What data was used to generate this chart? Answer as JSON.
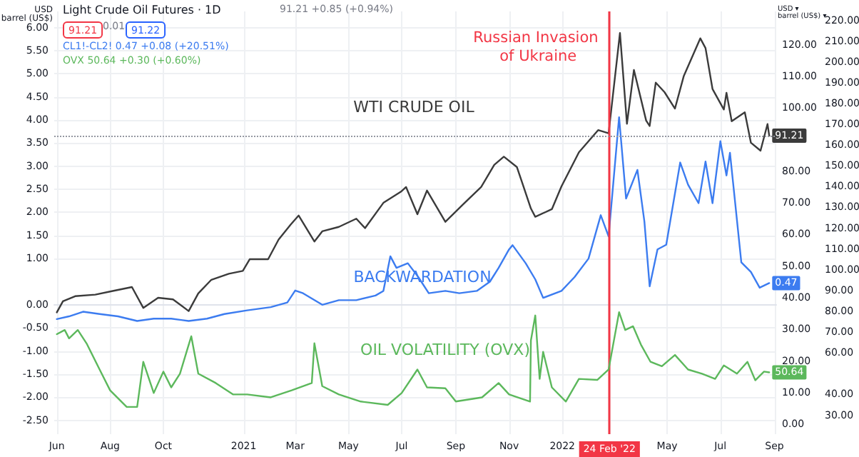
{
  "chart_data": {
    "type": "line",
    "title": "Light Crude Oil Futures · 1D",
    "ylabel": "USD\nbarrel (US$)",
    "y2label": "USD ▾\nbarrel (US$) ▾",
    "annotations": [
      "91.21 +0.85 (+0.94%)",
      "91.21",
      "0.01",
      "91.22",
      "CL1!-CL2! 0.47 +0.08 (+20.51%)",
      "OVX 50.64 +0.30 (+0.60%)"
    ],
    "marker": "none",
    "grid": true,
    "xlim": [
      "2020-05-29",
      "2022-09-03"
    ],
    "xticks": [
      {
        "value": "2020-06-01",
        "label": "Jun"
      },
      {
        "value": "2020-08-01",
        "label": "Aug"
      },
      {
        "value": "2020-10-01",
        "label": "Oct"
      },
      {
        "value": "2021-01-01",
        "label": "2021"
      },
      {
        "value": "2021-03-01",
        "label": "Mar"
      },
      {
        "value": "2021-05-01",
        "label": "May"
      },
      {
        "value": "2021-07-01",
        "label": "Jul"
      },
      {
        "value": "2021-09-01",
        "label": "Sep"
      },
      {
        "value": "2021-11-01",
        "label": "Nov"
      },
      {
        "value": "2022-01-01",
        "label": "2022"
      },
      {
        "value": "2022-02-24",
        "label": "24 Feb '22"
      },
      {
        "value": "2022-05-01",
        "label": "May"
      },
      {
        "value": "2022-07-01",
        "label": "Jul"
      },
      {
        "value": "2022-09-01",
        "label": "Sep"
      }
    ],
    "ylim": [
      -2.8,
      6.35
    ],
    "yticks": [
      {
        "value": -2.5,
        "label": "-2.50"
      },
      {
        "value": -2,
        "label": "-2.00"
      },
      {
        "value": -1.5,
        "label": "-1.50"
      },
      {
        "value": -1,
        "label": "-1.00"
      },
      {
        "value": -0.5,
        "label": "-0.50"
      },
      {
        "value": 0,
        "label": "0.00"
      },
      {
        "value": 1,
        "label": "1.00"
      },
      {
        "value": 1.5,
        "label": "1.50"
      },
      {
        "value": 2,
        "label": "2.00"
      },
      {
        "value": 2.5,
        "label": "2.50"
      },
      {
        "value": 3,
        "label": "3.00"
      },
      {
        "value": 3.5,
        "label": "3.50"
      },
      {
        "value": 4,
        "label": "4.00"
      },
      {
        "value": 4.5,
        "label": "4.50"
      },
      {
        "value": 5,
        "label": "5.00"
      },
      {
        "value": 5.5,
        "label": "5.50"
      },
      {
        "value": 6,
        "label": "6.00"
      }
    ],
    "y2lim": [
      -3.1,
      130.5
    ],
    "y2ticks": [
      {
        "value": 0,
        "label": "0.00"
      },
      {
        "value": 10,
        "label": "10.00"
      },
      {
        "value": 20,
        "label": "20.00"
      },
      {
        "value": 30,
        "label": "30.00"
      },
      {
        "value": 40,
        "label": "40.00"
      },
      {
        "value": 50,
        "label": "50.00"
      },
      {
        "value": 60,
        "label": "60.00"
      },
      {
        "value": 70,
        "label": "70.00"
      },
      {
        "value": 80,
        "label": "80.00"
      },
      {
        "value": 100,
        "label": "100.00"
      },
      {
        "value": 110,
        "label": "110.00"
      },
      {
        "value": 120,
        "label": "120.00"
      }
    ],
    "y3lim": [
      20.9,
      224.3
    ],
    "y3ticks": [
      {
        "value": 30,
        "label": "30.00"
      },
      {
        "value": 40,
        "label": "40.00"
      },
      {
        "value": 60,
        "label": "60.00"
      },
      {
        "value": 70,
        "label": "70.00"
      },
      {
        "value": 80,
        "label": "80.00"
      },
      {
        "value": 90,
        "label": "90.00"
      },
      {
        "value": 100,
        "label": "100.00"
      },
      {
        "value": 110,
        "label": "110.00"
      },
      {
        "value": 120,
        "label": "120.00"
      },
      {
        "value": 130,
        "label": "130.00"
      },
      {
        "value": 140,
        "label": "140.00"
      },
      {
        "value": 150,
        "label": "150.00"
      },
      {
        "value": 160,
        "label": "160.00"
      },
      {
        "value": 170,
        "label": "170.00"
      },
      {
        "value": 180,
        "label": "180.00"
      },
      {
        "value": 190,
        "label": "190.00"
      },
      {
        "value": 200,
        "label": "200.00"
      },
      {
        "value": 210,
        "label": "210.00"
      },
      {
        "value": 220,
        "label": "220.00"
      }
    ],
    "ref_lines": [
      {
        "axis": "x",
        "value": "2022-02-24",
        "label": "Russian Invasion of Ukraine",
        "color": "#f23645"
      },
      {
        "axis": "y2",
        "value": 91.21,
        "color": "#9598a1",
        "line_style": "dotted"
      }
    ],
    "series": [
      {
        "name": "WTI CRUDE OIL",
        "color": "#3b3b3b",
        "axis": "y2",
        "x": [
          "2020-06-01",
          "2020-06-08",
          "2020-06-22",
          "2020-07-15",
          "2020-08-05",
          "2020-08-26",
          "2020-09-08",
          "2020-09-25",
          "2020-10-12",
          "2020-10-30",
          "2020-11-10",
          "2020-11-25",
          "2020-12-15",
          "2020-12-31",
          "2021-01-08",
          "2021-01-29",
          "2021-02-10",
          "2021-02-24",
          "2021-03-05",
          "2021-03-23",
          "2021-04-01",
          "2021-04-20",
          "2021-05-10",
          "2021-05-20",
          "2021-06-10",
          "2021-06-30",
          "2021-07-06",
          "2021-07-19",
          "2021-07-30",
          "2021-08-20",
          "2021-09-10",
          "2021-09-30",
          "2021-10-15",
          "2021-10-26",
          "2021-11-10",
          "2021-11-26",
          "2021-12-01",
          "2021-12-20",
          "2021-12-31",
          "2022-01-20",
          "2022-02-11",
          "2022-02-23",
          "2022-03-08",
          "2022-03-16",
          "2022-03-24",
          "2022-04-07",
          "2022-04-11",
          "2022-04-18",
          "2022-04-28",
          "2022-05-10",
          "2022-05-20",
          "2022-06-08",
          "2022-06-14",
          "2022-06-22",
          "2022-07-05",
          "2022-07-08",
          "2022-07-14",
          "2022-07-29",
          "2022-08-05",
          "2022-08-16",
          "2022-08-24",
          "2022-08-26"
        ],
        "values": [
          35.4,
          38.9,
          40.5,
          41,
          42.2,
          43.4,
          36.8,
          40,
          39.5,
          35.8,
          41.4,
          45.7,
          47.6,
          48.5,
          52.2,
          52.2,
          58.4,
          63.2,
          66,
          57.8,
          61,
          62.4,
          65,
          62,
          70,
          73.5,
          75,
          66.4,
          73.9,
          64,
          69.7,
          75,
          82,
          84.6,
          81.3,
          68.2,
          65.6,
          68,
          75.2,
          86,
          93,
          92,
          123.7,
          95,
          112,
          96,
          94.3,
          108,
          105,
          99.8,
          110,
          122,
          118.9,
          106,
          99.5,
          104.8,
          95.8,
          98.6,
          89,
          86.5,
          94.9,
          91.21
        ],
        "value_labels": [
          null,
          null,
          null,
          null,
          null,
          null,
          null,
          null,
          null,
          null,
          null,
          null,
          null,
          null,
          null,
          null,
          null,
          null,
          null,
          null,
          null,
          null,
          null,
          null,
          null,
          null,
          null,
          null,
          null,
          null,
          null,
          null,
          null,
          null,
          null,
          null,
          null,
          null,
          null,
          null,
          null,
          null,
          null,
          null,
          null,
          null,
          null,
          null,
          null,
          null,
          null,
          null,
          null,
          null,
          null,
          null,
          null,
          null,
          null,
          null,
          null,
          "91.21"
        ]
      },
      {
        "name": "BACKWARDATION",
        "color": "#3c7cf0",
        "axis": "y",
        "x": [
          "2020-06-01",
          "2020-06-15",
          "2020-07-01",
          "2020-07-20",
          "2020-08-10",
          "2020-09-01",
          "2020-09-20",
          "2020-10-10",
          "2020-10-30",
          "2020-11-20",
          "2020-12-10",
          "2021-01-05",
          "2021-02-01",
          "2021-02-20",
          "2021-03-01",
          "2021-03-10",
          "2021-04-01",
          "2021-04-20",
          "2021-05-10",
          "2021-06-01",
          "2021-06-10",
          "2021-06-18",
          "2021-06-25",
          "2021-07-08",
          "2021-07-20",
          "2021-08-01",
          "2021-08-20",
          "2021-09-05",
          "2021-09-25",
          "2021-10-10",
          "2021-10-20",
          "2021-11-01",
          "2021-11-05",
          "2021-11-20",
          "2021-12-01",
          "2021-12-10",
          "2021-12-31",
          "2022-01-15",
          "2022-01-31",
          "2022-02-14",
          "2022-02-23",
          "2022-03-07",
          "2022-03-15",
          "2022-03-28",
          "2022-04-05",
          "2022-04-11",
          "2022-04-20",
          "2022-04-30",
          "2022-05-16",
          "2022-05-25",
          "2022-06-06",
          "2022-06-14",
          "2022-06-22",
          "2022-07-01",
          "2022-07-08",
          "2022-07-12",
          "2022-07-18",
          "2022-07-25",
          "2022-08-05",
          "2022-08-15",
          "2022-08-26"
        ],
        "values": [
          -0.31,
          -0.25,
          -0.15,
          -0.2,
          -0.25,
          -0.35,
          -0.3,
          -0.3,
          -0.35,
          -0.3,
          -0.2,
          -0.12,
          -0.05,
          0.05,
          0.31,
          0.25,
          0,
          0.1,
          0.1,
          0.2,
          0.3,
          1.05,
          0.8,
          0.9,
          0.6,
          0.25,
          0.3,
          0.25,
          0.3,
          0.5,
          0.8,
          1.2,
          1.29,
          0.9,
          0.55,
          0.15,
          0.3,
          0.6,
          1.0,
          1.94,
          1.48,
          4.06,
          2.3,
          2.92,
          1.8,
          0.4,
          1.2,
          1.3,
          3.08,
          2.6,
          2.2,
          3.1,
          2.2,
          3.54,
          2.8,
          3.29,
          2.2,
          0.92,
          0.71,
          0.37,
          0.47
        ],
        "value_labels": [
          null,
          null,
          null,
          null,
          null,
          null,
          null,
          null,
          null,
          null,
          null,
          null,
          null,
          null,
          null,
          null,
          null,
          null,
          null,
          null,
          null,
          null,
          null,
          null,
          null,
          null,
          null,
          null,
          null,
          null,
          null,
          null,
          null,
          null,
          null,
          null,
          null,
          null,
          null,
          null,
          null,
          null,
          null,
          null,
          null,
          null,
          null,
          null,
          null,
          null,
          null,
          null,
          null,
          null,
          null,
          null,
          null,
          null,
          null,
          null,
          "0.47"
        ]
      },
      {
        "name": "OIL VOLATILITY (OVX)",
        "color": "#5cb85c",
        "axis": "y3",
        "x": [
          "2020-06-01",
          "2020-06-10",
          "2020-06-15",
          "2020-06-25",
          "2020-07-05",
          "2020-07-20",
          "2020-08-01",
          "2020-08-20",
          "2020-09-01",
          "2020-09-08",
          "2020-09-20",
          "2020-10-01",
          "2020-10-10",
          "2020-10-20",
          "2020-11-02",
          "2020-11-10",
          "2020-11-30",
          "2020-12-20",
          "2021-01-05",
          "2021-02-01",
          "2021-02-25",
          "2021-03-20",
          "2021-03-23",
          "2021-04-01",
          "2021-04-20",
          "2021-05-15",
          "2021-06-15",
          "2021-07-01",
          "2021-07-19",
          "2021-07-30",
          "2021-08-20",
          "2021-09-01",
          "2021-10-01",
          "2021-10-20",
          "2021-11-01",
          "2021-11-25",
          "2021-11-26",
          "2021-12-01",
          "2021-12-06",
          "2021-12-10",
          "2021-12-20",
          "2022-01-05",
          "2022-01-20",
          "2022-02-10",
          "2022-02-23",
          "2022-03-07",
          "2022-03-14",
          "2022-03-23",
          "2022-04-01",
          "2022-04-12",
          "2022-04-25",
          "2022-05-10",
          "2022-05-25",
          "2022-06-10",
          "2022-06-25",
          "2022-07-05",
          "2022-07-20",
          "2022-08-01",
          "2022-08-10",
          "2022-08-20",
          "2022-08-26"
        ],
        "values": [
          69,
          71,
          67,
          71,
          64.6,
          52,
          42,
          34,
          34,
          55.7,
          40.7,
          51,
          43.4,
          50,
          68,
          50,
          45.5,
          40,
          40,
          38.6,
          42,
          45.5,
          64.6,
          44,
          40,
          36.6,
          35,
          40.7,
          52,
          43.4,
          43,
          36.6,
          38.6,
          45.5,
          40,
          36.6,
          66,
          78,
          47.5,
          60.5,
          43.4,
          36.6,
          47.5,
          47,
          52,
          79.6,
          71,
          72.8,
          64,
          55.7,
          53.6,
          59,
          52,
          50,
          47.5,
          54,
          50,
          55.7,
          46.8,
          51,
          50.64
        ],
        "value_labels": [
          null,
          null,
          null,
          null,
          null,
          null,
          null,
          null,
          null,
          null,
          null,
          null,
          null,
          null,
          null,
          null,
          null,
          null,
          null,
          null,
          null,
          null,
          null,
          null,
          null,
          null,
          null,
          null,
          null,
          null,
          null,
          null,
          null,
          null,
          null,
          null,
          null,
          null,
          null,
          null,
          null,
          null,
          null,
          null,
          null,
          null,
          null,
          null,
          null,
          null,
          null,
          null,
          null,
          null,
          null,
          null,
          null,
          null,
          null,
          null,
          "50.64"
        ]
      }
    ]
  }
}
